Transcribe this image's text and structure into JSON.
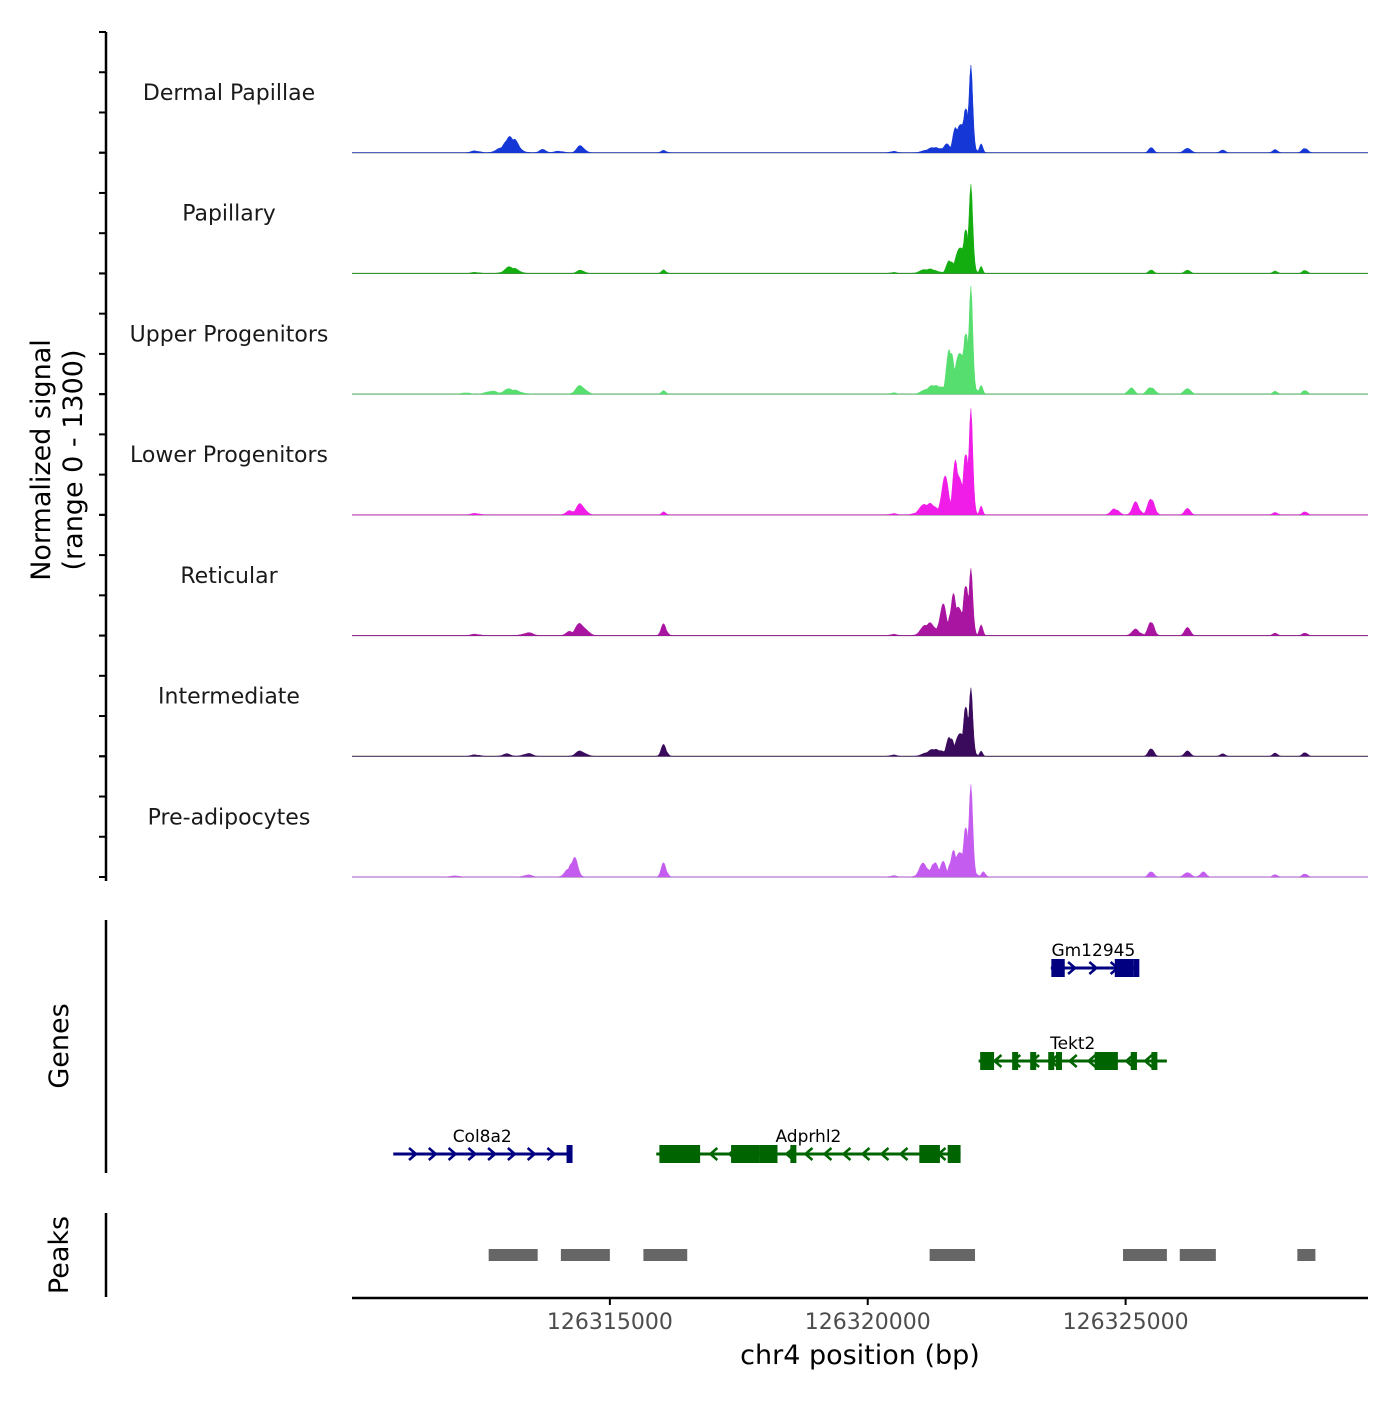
{
  "chart_data": {
    "type": "area",
    "title": "",
    "region": {
      "chrom": "chr4",
      "start": 126310000,
      "end": 126329700
    },
    "coverage": {
      "ylabel_line1": "Normalized signal",
      "ylabel_line2": "(range 0 - 1300)",
      "ylim": [
        0,
        1300
      ],
      "tracks": [
        {
          "name": "Dermal Papillae",
          "color": "#1537D6",
          "peaks": [
            [
              126313110,
              230,
              110
            ],
            [
              126313040,
              140,
              150
            ],
            [
              126314440,
              110,
              70
            ],
            [
              126313700,
              40,
              70
            ],
            [
              126316050,
              30,
              50
            ],
            [
              126321300,
              90,
              140
            ],
            [
              126321700,
              300,
              60
            ],
            [
              126321800,
              420,
              45
            ],
            [
              126321900,
              800,
              50
            ],
            [
              126322000,
              1280,
              40
            ],
            [
              126321860,
              520,
              110
            ],
            [
              126321550,
              110,
              80
            ],
            [
              126322200,
              100,
              35
            ],
            [
              126325500,
              90,
              45
            ],
            [
              126326200,
              80,
              60
            ],
            [
              126326880,
              50,
              45
            ],
            [
              126327900,
              40,
              50
            ],
            [
              126328480,
              70,
              50
            ],
            [
              126312400,
              25,
              80
            ],
            [
              126314000,
              25,
              80
            ],
            [
              126320500,
              20,
              60
            ]
          ]
        },
        {
          "name": "Papillary",
          "color": "#14AD0F",
          "peaks": [
            [
              126313100,
              90,
              120
            ],
            [
              126314440,
              50,
              70
            ],
            [
              126316050,
              45,
              45
            ],
            [
              126321200,
              70,
              140
            ],
            [
              126321600,
              200,
              60
            ],
            [
              126321810,
              380,
              50
            ],
            [
              126321900,
              800,
              45
            ],
            [
              126322000,
              1300,
              40
            ],
            [
              126321850,
              450,
              110
            ],
            [
              126322200,
              80,
              30
            ],
            [
              126325500,
              60,
              45
            ],
            [
              126326200,
              60,
              50
            ],
            [
              126327900,
              30,
              50
            ],
            [
              126328480,
              50,
              45
            ],
            [
              126312400,
              15,
              80
            ],
            [
              126320500,
              15,
              60
            ]
          ]
        },
        {
          "name": "Upper Progenitors",
          "color": "#56DE6E",
          "peaks": [
            [
              126313100,
              70,
              150
            ],
            [
              126312700,
              50,
              100
            ],
            [
              126314440,
              130,
              90
            ],
            [
              126316050,
              45,
              45
            ],
            [
              126321300,
              150,
              150
            ],
            [
              126321600,
              700,
              60
            ],
            [
              126321750,
              380,
              60
            ],
            [
              126321900,
              1100,
              50
            ],
            [
              126322000,
              1580,
              40
            ],
            [
              126321850,
              700,
              120
            ],
            [
              126322200,
              100,
              35
            ],
            [
              126325100,
              90,
              60
            ],
            [
              126325500,
              110,
              70
            ],
            [
              126326200,
              100,
              60
            ],
            [
              126327900,
              35,
              50
            ],
            [
              126328480,
              60,
              45
            ],
            [
              126312200,
              20,
              80
            ],
            [
              126320500,
              20,
              60
            ]
          ]
        },
        {
          "name": "Lower Progenitors",
          "color": "#F01DE8",
          "peaks": [
            [
              126314440,
              170,
              80
            ],
            [
              126314250,
              60,
              80
            ],
            [
              126316050,
              40,
              40
            ],
            [
              126321200,
              180,
              150
            ],
            [
              126321500,
              450,
              80
            ],
            [
              126321700,
              650,
              60
            ],
            [
              126321900,
              1100,
              50
            ],
            [
              126322000,
              1550,
              40
            ],
            [
              126321800,
              550,
              120
            ],
            [
              126322200,
              100,
              30
            ],
            [
              126324800,
              90,
              70
            ],
            [
              126325200,
              160,
              70
            ],
            [
              126325500,
              270,
              60
            ],
            [
              126326200,
              120,
              50
            ],
            [
              126327900,
              30,
              50
            ],
            [
              126328480,
              50,
              45
            ],
            [
              126312400,
              20,
              80
            ],
            [
              126320500,
              20,
              60
            ]
          ]
        },
        {
          "name": "Reticular",
          "color": "#A914A1",
          "peaks": [
            [
              126314440,
              180,
              100
            ],
            [
              126314250,
              60,
              80
            ],
            [
              126316050,
              150,
              50
            ],
            [
              126313400,
              40,
              100
            ],
            [
              126321200,
              200,
              120
            ],
            [
              126321450,
              400,
              70
            ],
            [
              126321650,
              550,
              60
            ],
            [
              126321900,
              900,
              50
            ],
            [
              126322000,
              980,
              40
            ],
            [
              126321800,
              400,
              120
            ],
            [
              126322200,
              120,
              35
            ],
            [
              126325200,
              80,
              80
            ],
            [
              126325500,
              230,
              55
            ],
            [
              126326200,
              150,
              50
            ],
            [
              126327900,
              30,
              50
            ],
            [
              126328480,
              40,
              45
            ],
            [
              126312400,
              20,
              80
            ],
            [
              126320500,
              20,
              60
            ]
          ]
        },
        {
          "name": "Intermediate",
          "color": "#3A0A5C",
          "peaks": [
            [
              126314440,
              80,
              90
            ],
            [
              126313400,
              40,
              90
            ],
            [
              126313000,
              30,
              80
            ],
            [
              126316050,
              150,
              50
            ],
            [
              126321300,
              120,
              140
            ],
            [
              126321600,
              300,
              60
            ],
            [
              126321900,
              900,
              45
            ],
            [
              126322000,
              1000,
              40
            ],
            [
              126321850,
              400,
              110
            ],
            [
              126322200,
              60,
              30
            ],
            [
              126325500,
              130,
              50
            ],
            [
              126326200,
              100,
              50
            ],
            [
              126326880,
              45,
              45
            ],
            [
              126327900,
              40,
              50
            ],
            [
              126328480,
              60,
              45
            ],
            [
              126312400,
              20,
              80
            ],
            [
              126320500,
              20,
              60
            ]
          ]
        },
        {
          "name": "Pre-adipocytes",
          "color": "#C55CF0",
          "peaks": [
            [
              126314300,
              280,
              70
            ],
            [
              126314200,
              90,
              80
            ],
            [
              126316050,
              180,
              50
            ],
            [
              126313400,
              30,
              80
            ],
            [
              126321100,
              180,
              90
            ],
            [
              126321300,
              250,
              70
            ],
            [
              126321450,
              200,
              60
            ],
            [
              126321650,
              350,
              60
            ],
            [
              126321900,
              900,
              45
            ],
            [
              126322000,
              1350,
              40
            ],
            [
              126321850,
              420,
              120
            ],
            [
              126322250,
              70,
              40
            ],
            [
              126325500,
              90,
              50
            ],
            [
              126326200,
              80,
              60
            ],
            [
              126326500,
              60,
              60
            ],
            [
              126327900,
              30,
              50
            ],
            [
              126328480,
              50,
              45
            ],
            [
              126312000,
              20,
              80
            ],
            [
              126320500,
              20,
              60
            ]
          ]
        }
      ]
    },
    "genes": {
      "ylabel": "Genes",
      "items": [
        {
          "name": "Gm12945",
          "strand": "+",
          "color": "#000080",
          "row": 1,
          "start": 126323550,
          "end": 126325200,
          "exons": [
            [
              126323560,
              126323820
            ],
            [
              126324790,
              126325150
            ],
            [
              126325150,
              126325200
            ]
          ]
        },
        {
          "name": "Tekt2",
          "strand": "-",
          "color": "#006400",
          "row": 2,
          "start": 126322150,
          "end": 126325800,
          "exons": [
            [
              126322180,
              126322450
            ],
            [
              126322800,
              126322900
            ],
            [
              126323150,
              126323250
            ],
            [
              126323500,
              126323580
            ],
            [
              126323650,
              126323750
            ],
            [
              126324400,
              126324850
            ],
            [
              126325100,
              126325220
            ],
            [
              126325500,
              126325600
            ]
          ]
        },
        {
          "name": "Col8a2",
          "strand": "+",
          "color": "#000080",
          "row": 3,
          "start": 126310800,
          "end": 126314250,
          "exons": [
            [
              126314160,
              126314250
            ]
          ]
        },
        {
          "name": "Adprhl2",
          "strand": "-",
          "color": "#006400",
          "row": 3,
          "start": 126315900,
          "end": 126321800,
          "exons": [
            [
              126315960,
              126316750
            ],
            [
              126317350,
              126317900
            ],
            [
              126317900,
              126318250
            ],
            [
              126318500,
              126318600
            ],
            [
              126321000,
              126321400
            ],
            [
              126321550,
              126321800
            ]
          ]
        }
      ]
    },
    "peaks": {
      "ylabel": "Peaks",
      "color": "#666666",
      "regions": [
        [
          126312650,
          126313600
        ],
        [
          126314050,
          126315000
        ],
        [
          126315650,
          126316500
        ],
        [
          126321200,
          126322080
        ],
        [
          126324950,
          126325800
        ],
        [
          126326050,
          126326750
        ],
        [
          126328330,
          126328680
        ]
      ]
    },
    "xaxis": {
      "label": "chr4 position (bp)",
      "ticks": [
        126315000,
        126320000,
        126325000
      ],
      "tick_labels": [
        "126315000",
        "126320000",
        "126325000"
      ]
    }
  }
}
